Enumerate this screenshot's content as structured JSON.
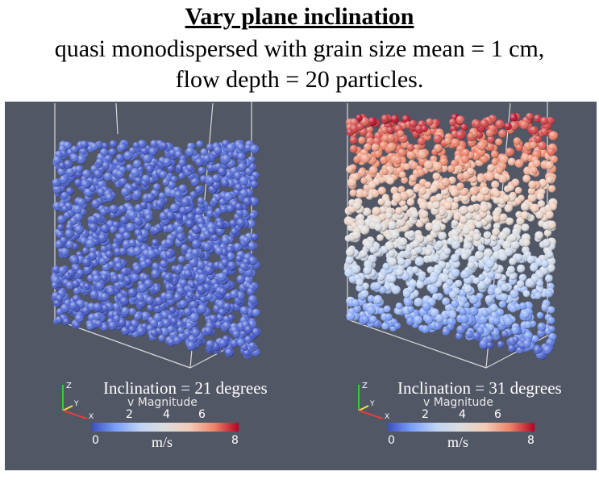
{
  "title": "Vary plane inclination",
  "subtitle_line1": "quasi  monodispersed with grain size mean = 1 cm,",
  "subtitle_line2": "flow depth = 20 particles.",
  "panels": [
    {
      "caption": "Inclination = 21 degrees",
      "colorbar": {
        "label": "v Magnitude",
        "ticks": [
          "2",
          "4",
          "6"
        ],
        "min": "0",
        "max": "8",
        "units": "m/s"
      },
      "axes": {
        "z": "Z",
        "y": "Y",
        "x": "X"
      },
      "velocity_profile": "uniform-low"
    },
    {
      "caption": "Inclination = 31 degrees",
      "colorbar": {
        "label": "v Magnitude",
        "ticks": [
          "2",
          "4",
          "6"
        ],
        "min": "0",
        "max": "8",
        "units": "m/s"
      },
      "axes": {
        "z": "Z",
        "y": "Y",
        "x": "X"
      },
      "velocity_profile": "increasing-with-height"
    }
  ],
  "colors": {
    "background": "#525766",
    "colormap": [
      "#3b4cc0",
      "#7b9ff9",
      "#c0d4f5",
      "#dddddd",
      "#f2cbb7",
      "#ee8468",
      "#b40426"
    ]
  }
}
